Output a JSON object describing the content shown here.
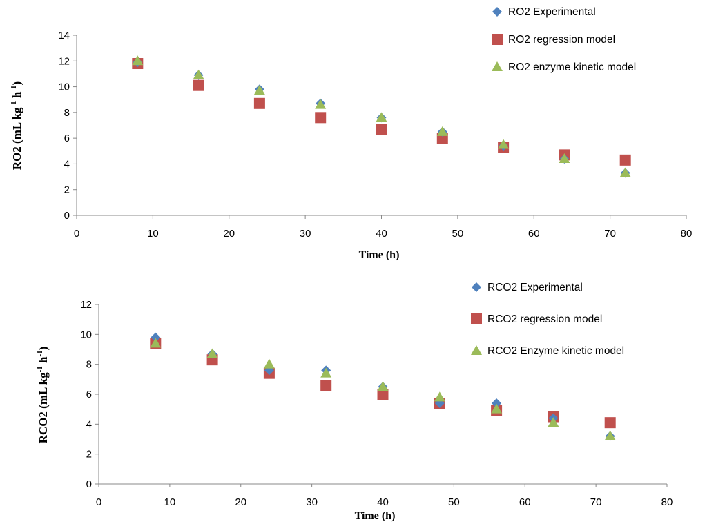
{
  "colors": {
    "experimental": "#4F81BD",
    "regression": "#C0504D",
    "kinetic": "#9BBB59",
    "axis": "#888888"
  },
  "chart_data": [
    {
      "type": "scatter",
      "xlabel": "Time (h)",
      "ylabel_main": "RO2 (mL kg",
      "ylabel_sup1": "-1",
      "ylabel_mid": " h",
      "ylabel_sup2": "-1",
      "ylabel_end": ")",
      "xlim": [
        0,
        80
      ],
      "ylim": [
        0,
        14
      ],
      "xticks": [
        0,
        10,
        20,
        30,
        40,
        50,
        60,
        70,
        80
      ],
      "yticks": [
        0,
        2,
        4,
        6,
        8,
        10,
        12,
        14
      ],
      "grid": false,
      "legend_position": "top-right",
      "series": [
        {
          "name": "RO2 Experimental",
          "marker": "diamond",
          "x": [
            8,
            16,
            24,
            32,
            40,
            48,
            56,
            64,
            72
          ],
          "y": [
            11.9,
            10.9,
            9.8,
            8.7,
            7.6,
            6.5,
            5.4,
            4.4,
            3.3
          ]
        },
        {
          "name": "RO2 regression model",
          "marker": "square",
          "x": [
            8,
            16,
            24,
            32,
            40,
            48,
            56,
            64,
            72
          ],
          "y": [
            11.8,
            10.1,
            8.7,
            7.6,
            6.7,
            6.0,
            5.3,
            4.7,
            4.3
          ]
        },
        {
          "name": "RO2 enzyme kinetic model",
          "marker": "triangle",
          "x": [
            8,
            16,
            24,
            32,
            40,
            48,
            56,
            64,
            72
          ],
          "y": [
            12.0,
            10.9,
            9.7,
            8.6,
            7.6,
            6.5,
            5.5,
            4.4,
            3.3
          ]
        }
      ]
    },
    {
      "type": "scatter",
      "xlabel": "Time (h)",
      "ylabel_main": "RCO2 (mL kg",
      "ylabel_sup1": "-1",
      "ylabel_mid": " h",
      "ylabel_sup2": "-1",
      "ylabel_end": ")",
      "xlim": [
        0,
        80
      ],
      "ylim": [
        0,
        12
      ],
      "xticks": [
        0,
        10,
        20,
        30,
        40,
        50,
        60,
        70,
        80
      ],
      "yticks": [
        0,
        2,
        4,
        6,
        8,
        10,
        12
      ],
      "grid": false,
      "legend_position": "top-right",
      "series": [
        {
          "name": "RCO2 Experimental",
          "marker": "diamond",
          "x": [
            8,
            16,
            24,
            32,
            40,
            48,
            56,
            64,
            72
          ],
          "y": [
            9.8,
            8.7,
            7.6,
            7.6,
            6.5,
            5.4,
            5.4,
            4.4,
            3.2
          ]
        },
        {
          "name": "RCO2 regression model",
          "marker": "square",
          "x": [
            8,
            16,
            24,
            32,
            40,
            48,
            56,
            64,
            72
          ],
          "y": [
            9.4,
            8.3,
            7.4,
            6.6,
            6.0,
            5.4,
            4.9,
            4.5,
            4.1
          ]
        },
        {
          "name": "RCO2 Enzyme kinetic model",
          "marker": "triangle",
          "x": [
            8,
            16,
            24,
            32,
            40,
            48,
            56,
            64,
            72
          ],
          "y": [
            9.4,
            8.7,
            8.0,
            7.4,
            6.5,
            5.8,
            5.0,
            4.1,
            3.2
          ]
        }
      ]
    }
  ]
}
